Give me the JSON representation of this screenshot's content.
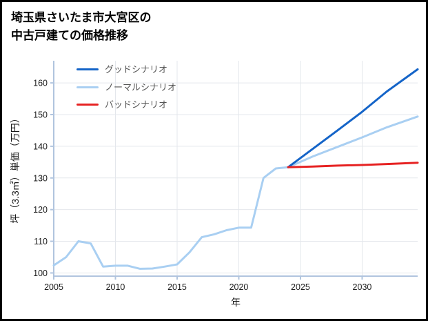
{
  "title": {
    "line1": "埼玉県さいたま市大宮区の",
    "line2": "中古戸建ての価格推移"
  },
  "chart_data": {
    "type": "line",
    "title": "埼玉県さいたま市大宮区の中古戸建ての価格推移",
    "xlabel": "年",
    "ylabel": "坪（3.3㎡）単価（万円）",
    "xlim": [
      2005,
      2034.5
    ],
    "ylim": [
      99,
      167
    ],
    "xticks": [
      2005,
      2010,
      2015,
      2020,
      2025,
      2030
    ],
    "yticks": [
      100,
      110,
      120,
      130,
      140,
      150,
      160
    ],
    "grid": true,
    "legend_position": "upper-left-inside",
    "axis_color": "#b0c4de",
    "grid_color": "#e4e7ec",
    "series": [
      {
        "name": "グッドシナリオ",
        "color": "#1464c8",
        "z": 2,
        "x": [
          2024,
          2026,
          2028,
          2030,
          2032,
          2034.5
        ],
        "y": [
          133.4,
          139.2,
          145.0,
          150.9,
          157.3,
          164.3
        ]
      },
      {
        "name": "ノーマルシナリオ",
        "color": "#a9cff2",
        "z": 1,
        "x": [
          2005,
          2006,
          2007,
          2008,
          2009,
          2010,
          2011,
          2012,
          2013,
          2014,
          2015,
          2016,
          2017,
          2018,
          2019,
          2020,
          2021,
          2022,
          2023,
          2024,
          2026,
          2028,
          2030,
          2032,
          2034.5
        ],
        "y": [
          102.4,
          105.0,
          110.0,
          109.3,
          102.0,
          102.3,
          102.3,
          101.3,
          101.4,
          102.0,
          102.7,
          106.5,
          111.3,
          112.2,
          113.5,
          114.3,
          114.3,
          130.0,
          133.0,
          133.4,
          136.8,
          139.8,
          142.8,
          146.0,
          149.4
        ]
      },
      {
        "name": "バッドシナリオ",
        "color": "#e62222",
        "z": 3,
        "x": [
          2024,
          2026,
          2028,
          2030,
          2032,
          2034.5
        ],
        "y": [
          133.4,
          133.6,
          133.9,
          134.1,
          134.4,
          134.8
        ]
      }
    ]
  }
}
